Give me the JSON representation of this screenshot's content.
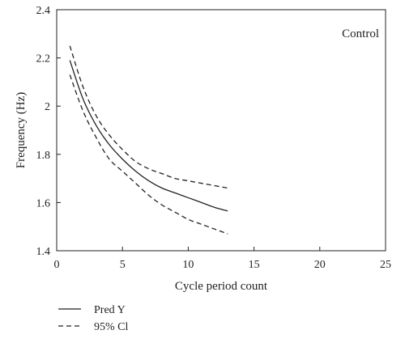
{
  "chart_data": {
    "type": "line",
    "title": "",
    "xlabel": "Cycle period count",
    "ylabel": "Frequency (Hz)",
    "xlim": [
      0,
      25
    ],
    "ylim": [
      1.4,
      2.4
    ],
    "xticks": [
      0,
      5,
      10,
      15,
      20,
      25
    ],
    "yticks": [
      1.4,
      1.6,
      1.8,
      2.0,
      2.2,
      2.4
    ],
    "xtick_labels": [
      "0",
      "5",
      "10",
      "15",
      "20",
      "25"
    ],
    "ytick_labels": [
      "1.4",
      "1.6",
      "1.8",
      "2",
      "2.2",
      "2.4"
    ],
    "grid": false,
    "annotation": "Control",
    "legend_position": "bottom-left, outside plot",
    "legend": [
      {
        "label": "Pred Y",
        "style": "solid"
      },
      {
        "label": "95% Cl",
        "style": "dashed"
      }
    ],
    "x": [
      1,
      2,
      3,
      4,
      5,
      6,
      7,
      8,
      9,
      10,
      11,
      12,
      13
    ],
    "series": [
      {
        "role": "pred",
        "style": "solid",
        "values": [
          2.19,
          2.03,
          1.92,
          1.84,
          1.78,
          1.73,
          1.69,
          1.66,
          1.64,
          1.62,
          1.6,
          1.58,
          1.565
        ]
      },
      {
        "role": "upper",
        "style": "dashed",
        "values": [
          2.25,
          2.08,
          1.96,
          1.88,
          1.82,
          1.77,
          1.74,
          1.72,
          1.7,
          1.69,
          1.68,
          1.67,
          1.66
        ]
      },
      {
        "role": "lower",
        "style": "dashed",
        "values": [
          2.13,
          1.98,
          1.87,
          1.78,
          1.73,
          1.68,
          1.63,
          1.59,
          1.56,
          1.53,
          1.51,
          1.49,
          1.47
        ]
      }
    ]
  }
}
